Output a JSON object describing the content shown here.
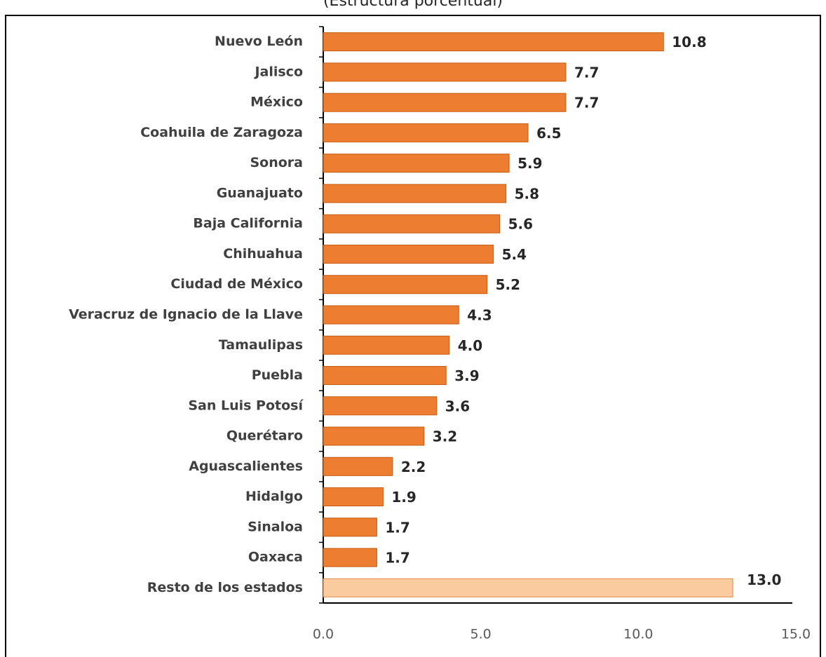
{
  "chart_data": {
    "type": "hbar",
    "subtitle": "(Estructura porcentual)",
    "categories": [
      "Nuevo León",
      "Jalisco",
      "México",
      "Coahuila de Zaragoza",
      "Sonora",
      "Guanajuato",
      "Baja California",
      "Chihuahua",
      "Ciudad de México",
      "Veracruz de Ignacio de la Llave",
      "Tamaulipas",
      "Puebla",
      "San Luis Potosí",
      "Querétaro",
      "Aguascalientes",
      "Hidalgo",
      "Sinaloa",
      "Oaxaca",
      "Resto de los estados"
    ],
    "values": [
      10.8,
      7.7,
      7.7,
      6.5,
      5.9,
      5.8,
      5.6,
      5.4,
      5.2,
      4.3,
      4.0,
      3.9,
      3.6,
      3.2,
      2.2,
      1.9,
      1.7,
      1.7,
      13.0
    ],
    "value_labels": [
      "10.8",
      "7.7",
      "7.7",
      "6.5",
      "5.9",
      "5.8",
      "5.6",
      "5.4",
      "5.2",
      "4.3",
      "4.0",
      "3.9",
      "3.6",
      "3.2",
      "2.2",
      "1.9",
      "1.7",
      "1.7",
      "13.0"
    ],
    "colors": [
      "#ed7d31",
      "#ed7d31",
      "#ed7d31",
      "#ed7d31",
      "#ed7d31",
      "#ed7d31",
      "#ed7d31",
      "#ed7d31",
      "#ed7d31",
      "#ed7d31",
      "#ed7d31",
      "#ed7d31",
      "#ed7d31",
      "#ed7d31",
      "#ed7d31",
      "#ed7d31",
      "#ed7d31",
      "#ed7d31",
      "#fbcba0"
    ],
    "xlim": [
      0,
      15
    ],
    "xticks": [
      {
        "value": 0,
        "label": "0.0"
      },
      {
        "value": 5,
        "label": "5.0"
      },
      {
        "value": 10,
        "label": "10.0"
      },
      {
        "value": 15,
        "label": "15.0"
      }
    ]
  }
}
